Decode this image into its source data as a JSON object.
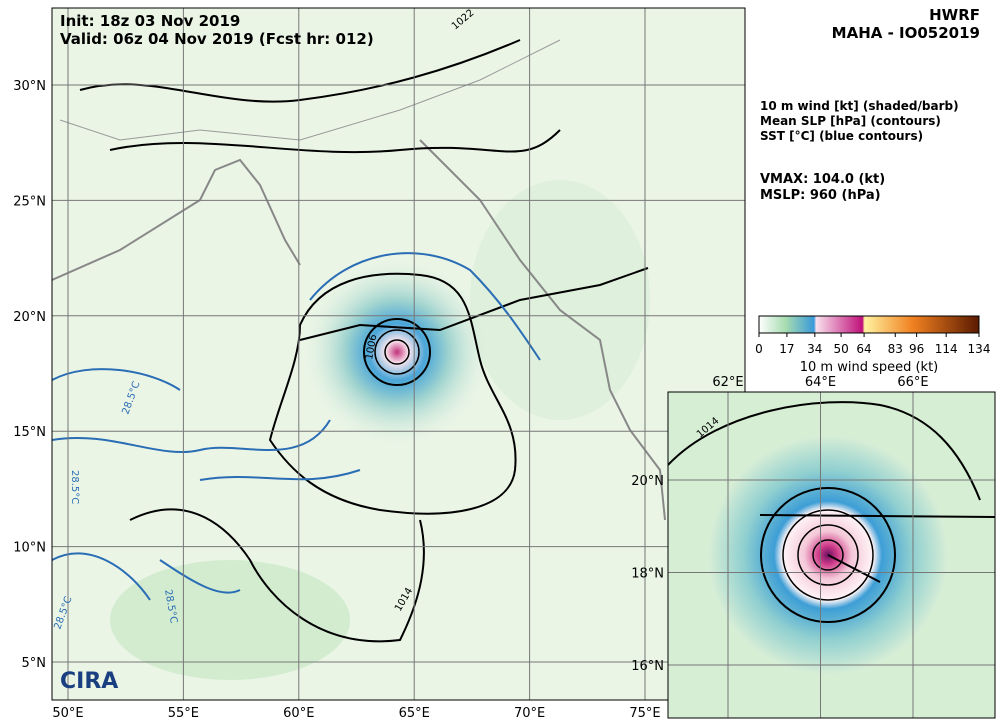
{
  "header": {
    "init": "Init:   18z 03 Nov 2019",
    "valid": "Valid: 06z 04 Nov 2019 (Fcst hr: 012)",
    "model": "HWRF",
    "storm": "MAHA - IO052019"
  },
  "legend": {
    "lines": [
      "10 m wind [kt] (shaded/barb)",
      "Mean SLP [hPa] (contours)",
      "SST [°C] (blue contours)"
    ],
    "vmax": "VMAX: 104.0 (kt)",
    "mslp": "MSLP:  960 (hPa)"
  },
  "colorbar": {
    "ticks": [
      0,
      17,
      34,
      50,
      64,
      83,
      96,
      114,
      134
    ],
    "label": "10 m wind speed (kt)"
  },
  "main_map": {
    "lat_labels": [
      "30°N",
      "25°N",
      "20°N",
      "15°N",
      "10°N",
      "5°N"
    ],
    "lon_labels": [
      "50°E",
      "55°E",
      "60°E",
      "65°E",
      "70°E",
      "75°E"
    ],
    "contour_labels": [
      "1022",
      "1006",
      "1014",
      "28.5°C",
      "28.5°C",
      "28.5°C",
      "28.5°C"
    ],
    "logo": "CIRA"
  },
  "inset_map": {
    "lon_labels": [
      "62°E",
      "64°E",
      "66°E"
    ],
    "lat_labels": [
      "20°N",
      "18°N",
      "16°N"
    ],
    "contour_labels": [
      "1014"
    ]
  }
}
